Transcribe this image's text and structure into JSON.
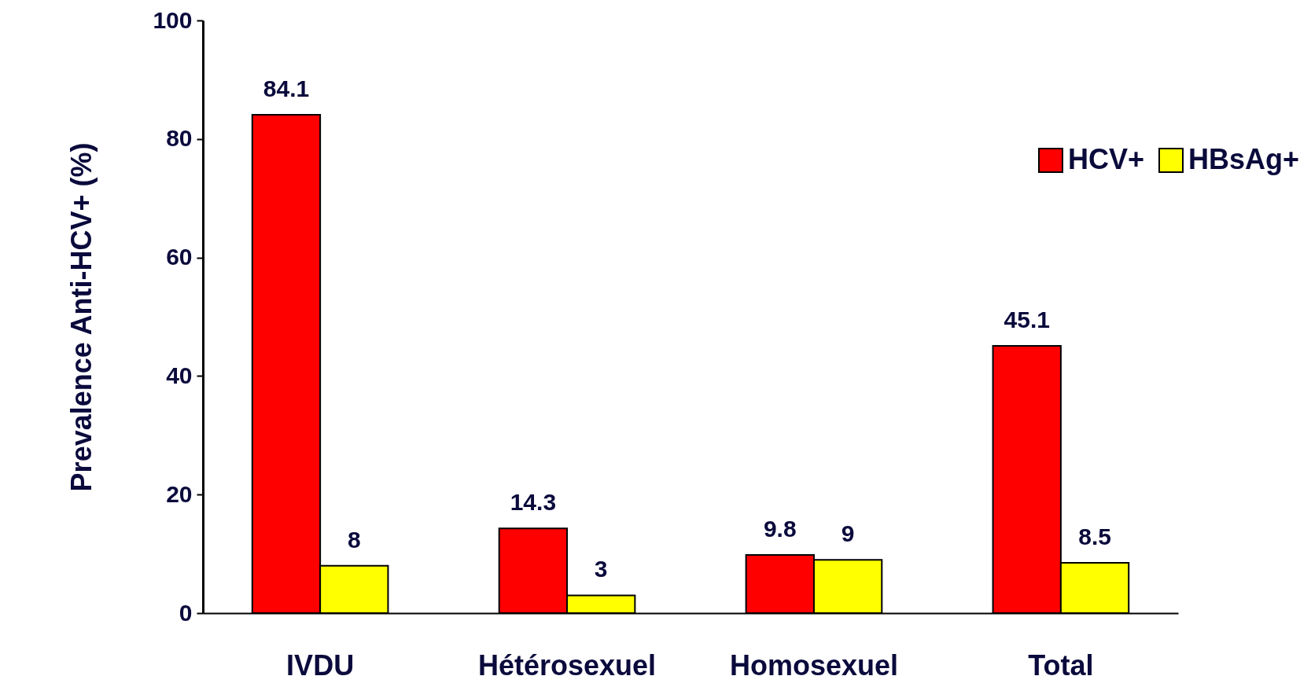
{
  "chart_data": {
    "type": "bar",
    "ylabel": "Prevalence Anti-HCV+ (%)",
    "categories": [
      "IVDU",
      "Hétérosexuel",
      "Homosexuel",
      "Total"
    ],
    "series": [
      {
        "name": "HCV+",
        "color": "#ff0000",
        "values": [
          84.1,
          14.3,
          9.8,
          45.1
        ]
      },
      {
        "name": "HBsAg+",
        "color": "#ffff00",
        "values": [
          8,
          3,
          9,
          8.5
        ]
      }
    ],
    "ylim": [
      0,
      100
    ],
    "yticks": [
      0,
      20,
      40,
      60,
      80,
      100
    ],
    "grid": false,
    "legend": "top right",
    "data_labels": true
  }
}
